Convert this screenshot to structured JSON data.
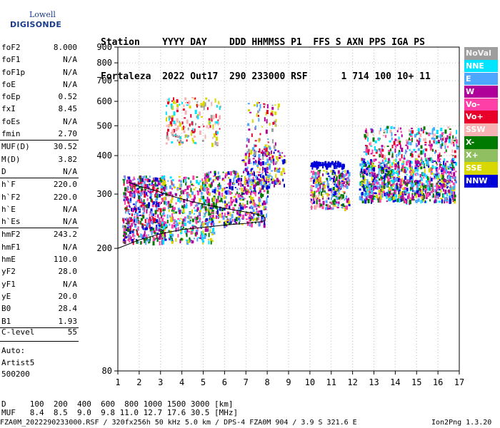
{
  "logo": {
    "line1": "Lowell",
    "line2": "DIGISONDE"
  },
  "header": {
    "line1": "Station    YYYY DAY    DDD HHMMSS P1  FFS S AXN PPS IGA PS",
    "line2": "Fortaleza  2022 Out17  290 233000 RSF      1 714 100 10+ 11"
  },
  "params": {
    "group1": [
      {
        "label": "foF2",
        "value": "8.000"
      },
      {
        "label": "foF1",
        "value": "N/A"
      },
      {
        "label": "foF1p",
        "value": "N/A"
      },
      {
        "label": "foE",
        "value": "N/A"
      },
      {
        "label": "foEp",
        "value": "0.52"
      },
      {
        "label": "fxI",
        "value": "8.45"
      },
      {
        "label": "foEs",
        "value": "N/A"
      },
      {
        "label": "fmin",
        "value": "2.70"
      }
    ],
    "group2": [
      {
        "label": "MUF(D)",
        "value": "30.52"
      },
      {
        "label": "M(D)",
        "value": "3.82"
      },
      {
        "label": "D",
        "value": "N/A"
      }
    ],
    "group3": [
      {
        "label": "h`F",
        "value": "220.0"
      },
      {
        "label": "h`F2",
        "value": "220.0"
      },
      {
        "label": "h`E",
        "value": "N/A"
      },
      {
        "label": "h`Es",
        "value": "N/A"
      }
    ],
    "group4": [
      {
        "label": "hmF2",
        "value": "243.2"
      },
      {
        "label": "hmF1",
        "value": "N/A"
      },
      {
        "label": "hmE",
        "value": "110.0"
      },
      {
        "label": "yF2",
        "value": "28.0"
      },
      {
        "label": "yF1",
        "value": "N/A"
      },
      {
        "label": "yE",
        "value": "20.0"
      },
      {
        "label": "B0",
        "value": "28.4"
      },
      {
        "label": "B1",
        "value": "1.93"
      }
    ],
    "clevel": {
      "label": "C-level",
      "value": "55"
    },
    "auto": [
      "Auto:",
      "Artist5",
      "500200"
    ]
  },
  "legend": [
    {
      "label": "NoVal",
      "color": "#9e9e9e"
    },
    {
      "label": "NNE",
      "color": "#00e5ff"
    },
    {
      "label": "E",
      "color": "#4da6ff"
    },
    {
      "label": "W",
      "color": "#b0009a"
    },
    {
      "label": "Vo-",
      "color": "#ff3fa8"
    },
    {
      "label": "Vo+",
      "color": "#e8002a"
    },
    {
      "label": "SSW",
      "color": "#f7b3b3"
    },
    {
      "label": "X-",
      "color": "#007a00"
    },
    {
      "label": "X+",
      "color": "#8fbf60"
    },
    {
      "label": "SSE",
      "color": "#d8d800"
    },
    {
      "label": "NNW",
      "color": "#0000d8"
    }
  ],
  "bottom": {
    "d_line": "D     100  200  400  600  800 1000 1500 3000 [km]",
    "muf_line": "MUF   8.4  8.5  9.0  9.8 11.0 12.7 17.6 30.5 [MHz]",
    "footer": "FZA0M_2022290233000.RSF / 320fx256h 50 kHz 5.0 km / DPS-4 FZA0M 904 / 3.9 S 321.6 E",
    "ion": "Ion2Png 1.3.20"
  },
  "chart_data": {
    "type": "scatter",
    "title": "",
    "xlabel": "",
    "ylabel": "",
    "xlim": [
      1,
      17
    ],
    "ylim": [
      80,
      900
    ],
    "x_ticks": [
      1,
      2,
      3,
      4,
      5,
      6,
      7,
      8,
      9,
      10,
      11,
      12,
      13,
      14,
      15,
      16,
      17
    ],
    "y_ticks": [
      80,
      200,
      300,
      400,
      500,
      600,
      700,
      800,
      900
    ],
    "y_scale": "log",
    "grid": "dotted",
    "trace": {
      "name": "",
      "x": [
        1.0,
        2.0,
        3.0,
        4.0,
        5.0,
        6.0,
        7.0,
        7.4,
        7.7,
        7.9,
        7.9,
        7.6,
        7.2,
        6.5,
        5.5,
        4.5,
        3.5,
        2.7,
        2.0,
        1.5
      ],
      "y": [
        200,
        213,
        223,
        230,
        234,
        238,
        241,
        243,
        244,
        246,
        252,
        257,
        261,
        266,
        274,
        283,
        296,
        309,
        318,
        328
      ]
    },
    "clusters": [
      {
        "x": [
          1.2,
          3.2
        ],
        "y": [
          210,
          345
        ],
        "colors": [
          "W",
          "Vo-",
          "Vo+",
          "X-",
          "NNW",
          "E"
        ],
        "n": 520
      },
      {
        "x": [
          3.0,
          5.5
        ],
        "y": [
          210,
          345
        ],
        "colors": [
          "W",
          "Vo-",
          "X-",
          "E",
          "NNE",
          "SSE"
        ],
        "n": 420
      },
      {
        "x": [
          3.2,
          5.8
        ],
        "y": [
          440,
          620
        ],
        "colors": [
          "SSE",
          "SSW",
          "NoVal",
          "Vo+",
          "NNE"
        ],
        "n": 170
      },
      {
        "x": [
          5.0,
          8.0
        ],
        "y": [
          240,
          360
        ],
        "colors": [
          "SSE",
          "Vo-",
          "X-",
          "W",
          "E",
          "NNW"
        ],
        "n": 460
      },
      {
        "x": [
          6.8,
          8.8
        ],
        "y": [
          320,
          420
        ],
        "colors": [
          "NNW",
          "E",
          "SSE",
          "W"
        ],
        "n": 170
      },
      {
        "x": [
          7.0,
          8.5
        ],
        "y": [
          380,
          600
        ],
        "colors": [
          "E",
          "Vo+",
          "W",
          "SSE",
          "NoVal"
        ],
        "n": 90
      },
      {
        "x": [
          10.0,
          11.8
        ],
        "y": [
          270,
          360
        ],
        "colors": [
          "SSE",
          "W",
          "NNW",
          "Vo-",
          "SSW",
          "E",
          "X-"
        ],
        "n": 300
      },
      {
        "x": [
          10.0,
          11.6
        ],
        "y": [
          370,
          385
        ],
        "colors": [
          "NNW"
        ],
        "n": 90
      },
      {
        "x": [
          12.3,
          16.8
        ],
        "y": [
          285,
          395
        ],
        "colors": [
          "NNW",
          "W",
          "Vo-",
          "E",
          "NNE",
          "SSE",
          "X-"
        ],
        "n": 950
      },
      {
        "x": [
          12.5,
          16.9
        ],
        "y": [
          400,
          500
        ],
        "colors": [
          "W",
          "Vo-",
          "E",
          "NNE",
          "X-",
          "SSW",
          "Vo+"
        ],
        "n": 260
      }
    ]
  }
}
